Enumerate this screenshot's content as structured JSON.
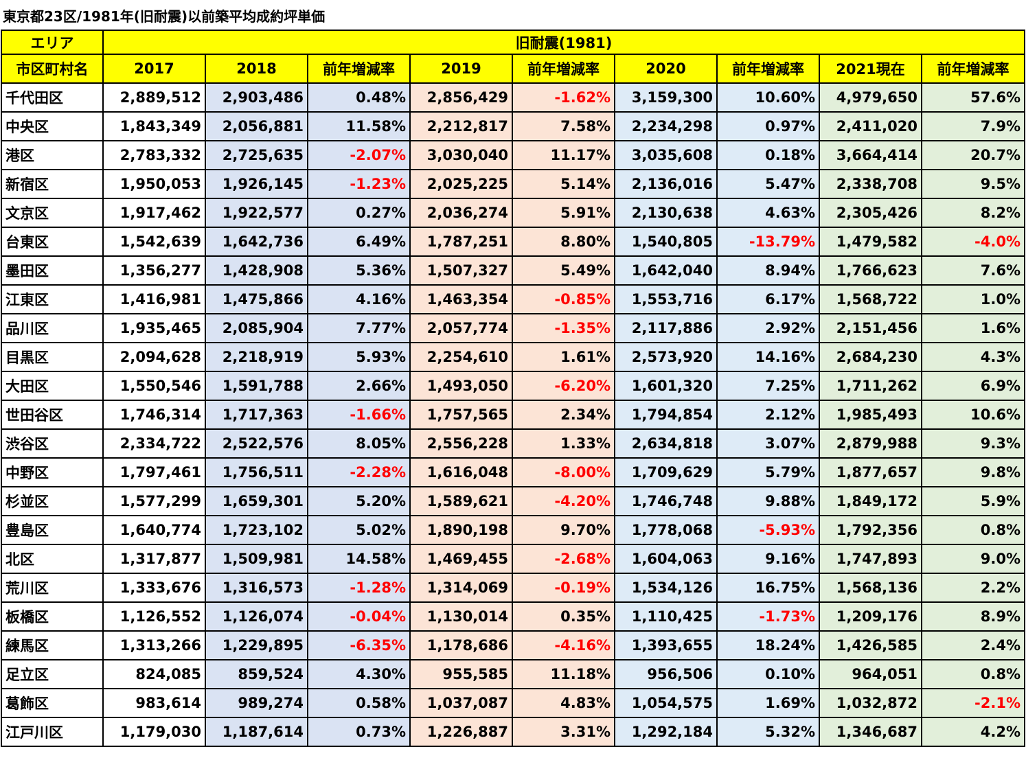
{
  "title": "東京都23区/1981年(旧耐震)以前築平均成約坪単価",
  "header": {
    "area": "エリア",
    "group": "旧耐震(1981)",
    "columns": [
      "市区町村名",
      "2017",
      "2018",
      "前年増減率",
      "2019",
      "前年増減率",
      "2020",
      "前年増減率",
      "2021現在",
      "前年増減率"
    ]
  },
  "colors": {
    "header": "#ffff00",
    "col2018": "#dae3f3",
    "col2019": "#fce4d6",
    "col2020": "#deebf7",
    "col2021": "#e2efda",
    "negative": "#ff0000"
  },
  "rows": [
    [
      "千代田区",
      "2,889,512",
      "2,903,486",
      "0.48%",
      "2,856,429",
      "-1.62%",
      "3,159,300",
      "10.60%",
      "4,979,650",
      "57.6%"
    ],
    [
      "中央区",
      "1,843,349",
      "2,056,881",
      "11.58%",
      "2,212,817",
      "7.58%",
      "2,234,298",
      "0.97%",
      "2,411,020",
      "7.9%"
    ],
    [
      "港区",
      "2,783,332",
      "2,725,635",
      "-2.07%",
      "3,030,040",
      "11.17%",
      "3,035,608",
      "0.18%",
      "3,664,414",
      "20.7%"
    ],
    [
      "新宿区",
      "1,950,053",
      "1,926,145",
      "-1.23%",
      "2,025,225",
      "5.14%",
      "2,136,016",
      "5.47%",
      "2,338,708",
      "9.5%"
    ],
    [
      "文京区",
      "1,917,462",
      "1,922,577",
      "0.27%",
      "2,036,274",
      "5.91%",
      "2,130,638",
      "4.63%",
      "2,305,426",
      "8.2%"
    ],
    [
      "台東区",
      "1,542,639",
      "1,642,736",
      "6.49%",
      "1,787,251",
      "8.80%",
      "1,540,805",
      "-13.79%",
      "1,479,582",
      "-4.0%"
    ],
    [
      "墨田区",
      "1,356,277",
      "1,428,908",
      "5.36%",
      "1,507,327",
      "5.49%",
      "1,642,040",
      "8.94%",
      "1,766,623",
      "7.6%"
    ],
    [
      "江東区",
      "1,416,981",
      "1,475,866",
      "4.16%",
      "1,463,354",
      "-0.85%",
      "1,553,716",
      "6.17%",
      "1,568,722",
      "1.0%"
    ],
    [
      "品川区",
      "1,935,465",
      "2,085,904",
      "7.77%",
      "2,057,774",
      "-1.35%",
      "2,117,886",
      "2.92%",
      "2,151,456",
      "1.6%"
    ],
    [
      "目黒区",
      "2,094,628",
      "2,218,919",
      "5.93%",
      "2,254,610",
      "1.61%",
      "2,573,920",
      "14.16%",
      "2,684,230",
      "4.3%"
    ],
    [
      "大田区",
      "1,550,546",
      "1,591,788",
      "2.66%",
      "1,493,050",
      "-6.20%",
      "1,601,320",
      "7.25%",
      "1,711,262",
      "6.9%"
    ],
    [
      "世田谷区",
      "1,746,314",
      "1,717,363",
      "-1.66%",
      "1,757,565",
      "2.34%",
      "1,794,854",
      "2.12%",
      "1,985,493",
      "10.6%"
    ],
    [
      "渋谷区",
      "2,334,722",
      "2,522,576",
      "8.05%",
      "2,556,228",
      "1.33%",
      "2,634,818",
      "3.07%",
      "2,879,988",
      "9.3%"
    ],
    [
      "中野区",
      "1,797,461",
      "1,756,511",
      "-2.28%",
      "1,616,048",
      "-8.00%",
      "1,709,629",
      "5.79%",
      "1,877,657",
      "9.8%"
    ],
    [
      "杉並区",
      "1,577,299",
      "1,659,301",
      "5.20%",
      "1,589,621",
      "-4.20%",
      "1,746,748",
      "9.88%",
      "1,849,172",
      "5.9%"
    ],
    [
      "豊島区",
      "1,640,774",
      "1,723,102",
      "5.02%",
      "1,890,198",
      "9.70%",
      "1,778,068",
      "-5.93%",
      "1,792,356",
      "0.8%"
    ],
    [
      "北区",
      "1,317,877",
      "1,509,981",
      "14.58%",
      "1,469,455",
      "-2.68%",
      "1,604,063",
      "9.16%",
      "1,747,893",
      "9.0%"
    ],
    [
      "荒川区",
      "1,333,676",
      "1,316,573",
      "-1.28%",
      "1,314,069",
      "-0.19%",
      "1,534,126",
      "16.75%",
      "1,568,136",
      "2.2%"
    ],
    [
      "板橋区",
      "1,126,552",
      "1,126,074",
      "-0.04%",
      "1,130,014",
      "0.35%",
      "1,110,425",
      "-1.73%",
      "1,209,176",
      "8.9%"
    ],
    [
      "練馬区",
      "1,313,266",
      "1,229,895",
      "-6.35%",
      "1,178,686",
      "-4.16%",
      "1,393,655",
      "18.24%",
      "1,426,585",
      "2.4%"
    ],
    [
      "足立区",
      "824,085",
      "859,524",
      "4.30%",
      "955,585",
      "11.18%",
      "956,506",
      "0.10%",
      "964,051",
      "0.8%"
    ],
    [
      "葛飾区",
      "983,614",
      "989,274",
      "0.58%",
      "1,037,087",
      "4.83%",
      "1,054,575",
      "1.69%",
      "1,032,872",
      "-2.1%"
    ],
    [
      "江戸川区",
      "1,179,030",
      "1,187,614",
      "0.73%",
      "1,226,887",
      "3.31%",
      "1,292,184",
      "5.32%",
      "1,346,687",
      "4.2%"
    ]
  ]
}
